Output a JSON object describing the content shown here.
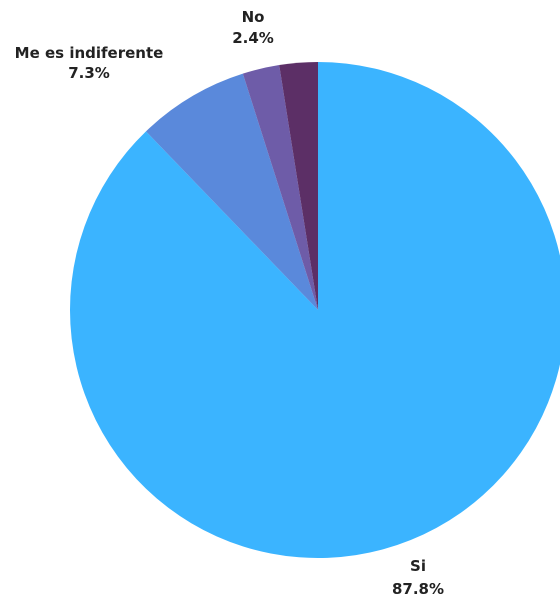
{
  "chart_data": {
    "type": "pie",
    "title": "",
    "slices": [
      {
        "label": "Si",
        "value": 87.8,
        "value_label": "87.8%",
        "color": "#3BB4FF"
      },
      {
        "label": "Me es indiferente",
        "value": 7.3,
        "value_label": "7.3%",
        "color": "#5A89DB"
      },
      {
        "label": "No",
        "value": 2.4,
        "value_label": "2.4%",
        "color": "#6E5CA8"
      },
      {
        "label": "",
        "value": 2.5,
        "value_label": "",
        "color": "#5C2F66"
      }
    ],
    "start_angle": "12 o'clock",
    "direction": "clockwise",
    "legend": "none"
  }
}
